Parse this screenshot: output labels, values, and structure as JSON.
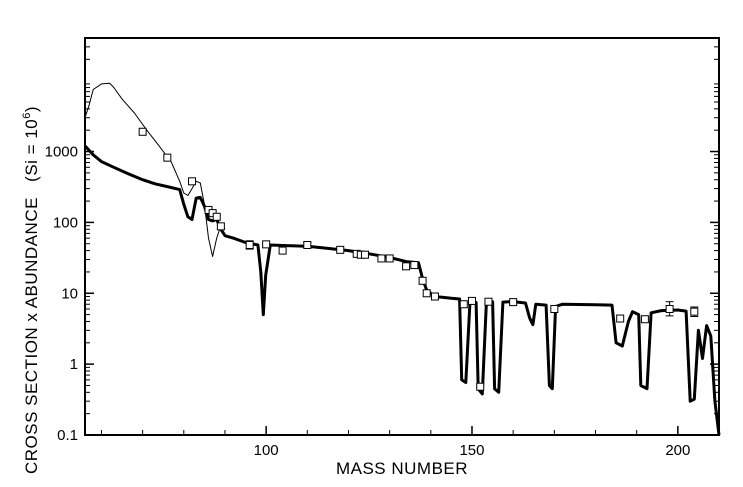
{
  "chart_data": {
    "type": "line",
    "title": "",
    "xlabel": "MASS  NUMBER",
    "ylabel": "CROSS  SECTION  x  ABUNDANCE",
    "ylabel_suffix": "(Si = 10",
    "ylabel_exp": "6",
    "ylabel_close": ")",
    "xlim": [
      56,
      210
    ],
    "ylim": [
      0.1,
      40000
    ],
    "yscale": "log",
    "grid": false,
    "legend": "none",
    "x_ticks": [
      100,
      150,
      200
    ],
    "x_tick_labels": [
      "100",
      "150",
      "200"
    ],
    "y_ticks": [
      0.1,
      1,
      10,
      100,
      1000
    ],
    "y_tick_labels": [
      "0.1",
      "1",
      "10",
      "100",
      "1000"
    ],
    "series": [
      {
        "style": "thick",
        "points": [
          [
            56,
            1200
          ],
          [
            58,
            900
          ],
          [
            60,
            720
          ],
          [
            63,
            600
          ],
          [
            66,
            500
          ],
          [
            70,
            400
          ],
          [
            73,
            350
          ],
          [
            76,
            320
          ],
          [
            79,
            290
          ],
          [
            80,
            180
          ],
          [
            81,
            120
          ],
          [
            82,
            110
          ],
          [
            83,
            220
          ],
          [
            84,
            225
          ],
          [
            85,
            170
          ],
          [
            86,
            110
          ],
          [
            87,
            105
          ],
          [
            88,
            110
          ],
          [
            89,
            80
          ],
          [
            90,
            65
          ],
          [
            92,
            60
          ],
          [
            95,
            52
          ],
          [
            98,
            48
          ],
          [
            98.7,
            20
          ],
          [
            99.3,
            5
          ],
          [
            99.9,
            18
          ],
          [
            101,
            48
          ],
          [
            105,
            47
          ],
          [
            110,
            46
          ],
          [
            115,
            43
          ],
          [
            120,
            40
          ],
          [
            125,
            36
          ],
          [
            130,
            32
          ],
          [
            134,
            28
          ],
          [
            137,
            27
          ],
          [
            138,
            16
          ],
          [
            139,
            11
          ],
          [
            141,
            9
          ],
          [
            145,
            8.5
          ],
          [
            147,
            8.3
          ],
          [
            147.5,
            0.6
          ],
          [
            148.5,
            0.55
          ],
          [
            149.5,
            7.2
          ],
          [
            151,
            7.4
          ],
          [
            151.5,
            0.45
          ],
          [
            152.5,
            0.38
          ],
          [
            153.5,
            7.5
          ],
          [
            155,
            7.6
          ],
          [
            155.5,
            0.45
          ],
          [
            156.5,
            0.4
          ],
          [
            157.5,
            7.5
          ],
          [
            159,
            7.6
          ],
          [
            161,
            7.5
          ],
          [
            163,
            7.3
          ],
          [
            164,
            4.5
          ],
          [
            164.8,
            3.6
          ],
          [
            165.5,
            7.0
          ],
          [
            168,
            6.8
          ],
          [
            168.8,
            0.5
          ],
          [
            169.5,
            0.45
          ],
          [
            170.3,
            6.5
          ],
          [
            172,
            7.0
          ],
          [
            180,
            6.9
          ],
          [
            184,
            6.8
          ],
          [
            185,
            2.0
          ],
          [
            186.5,
            1.8
          ],
          [
            188,
            4.0
          ],
          [
            189,
            5.5
          ],
          [
            190.5,
            5.0
          ],
          [
            191,
            0.5
          ],
          [
            192.5,
            0.45
          ],
          [
            193.5,
            5.3
          ],
          [
            196,
            5.7
          ],
          [
            200,
            5.8
          ],
          [
            202,
            5.6
          ],
          [
            203,
            0.3
          ],
          [
            204,
            0.32
          ],
          [
            205,
            3.0
          ],
          [
            206,
            1.2
          ],
          [
            207,
            3.5
          ],
          [
            208,
            2.5
          ],
          [
            209,
            0.3
          ],
          [
            210,
            0.1
          ]
        ]
      },
      {
        "style": "thin",
        "points": [
          [
            56,
            3000
          ],
          [
            57,
            4500
          ],
          [
            58,
            7500
          ],
          [
            60,
            9000
          ],
          [
            62,
            9200
          ],
          [
            63,
            8000
          ],
          [
            65,
            5500
          ],
          [
            68,
            3500
          ],
          [
            71,
            2000
          ],
          [
            74,
            1200
          ],
          [
            77,
            700
          ],
          [
            79,
            380
          ],
          [
            80,
            260
          ],
          [
            81,
            240
          ],
          [
            82,
            300
          ],
          [
            83,
            380
          ],
          [
            84,
            360
          ],
          [
            85,
            180
          ],
          [
            86,
            60
          ],
          [
            87,
            33
          ],
          [
            88,
            60
          ],
          [
            89,
            90
          ],
          [
            90,
            80
          ]
        ]
      }
    ],
    "markers": [
      {
        "x": 70,
        "y": 1900
      },
      {
        "x": 76,
        "y": 820
      },
      {
        "x": 82,
        "y": 380
      },
      {
        "x": 86,
        "y": 150
      },
      {
        "x": 87,
        "y": 135
      },
      {
        "x": 88,
        "y": 120
      },
      {
        "x": 89,
        "y": 88
      },
      {
        "x": 96,
        "y": 48,
        "err": [
          42,
          55
        ]
      },
      {
        "x": 100,
        "y": 49
      },
      {
        "x": 104,
        "y": 40
      },
      {
        "x": 110,
        "y": 48,
        "err": [
          44,
          52
        ]
      },
      {
        "x": 118,
        "y": 41
      },
      {
        "x": 122,
        "y": 36
      },
      {
        "x": 123,
        "y": 35
      },
      {
        "x": 124,
        "y": 35
      },
      {
        "x": 128,
        "y": 31
      },
      {
        "x": 130,
        "y": 31
      },
      {
        "x": 134,
        "y": 24
      },
      {
        "x": 136,
        "y": 25
      },
      {
        "x": 138,
        "y": 15
      },
      {
        "x": 139,
        "y": 10
      },
      {
        "x": 141,
        "y": 9
      },
      {
        "x": 148,
        "y": 7.0
      },
      {
        "x": 150,
        "y": 7.8
      },
      {
        "x": 152,
        "y": 0.48
      },
      {
        "x": 154,
        "y": 7.6
      },
      {
        "x": 160,
        "y": 7.5
      },
      {
        "x": 170,
        "y": 6.0
      },
      {
        "x": 186,
        "y": 4.4
      },
      {
        "x": 192,
        "y": 4.3
      },
      {
        "x": 198,
        "y": 6.0,
        "err": [
          4.8,
          7.6
        ]
      },
      {
        "x": 204,
        "y": 5.5,
        "err": [
          4.7,
          6.4
        ]
      }
    ]
  }
}
